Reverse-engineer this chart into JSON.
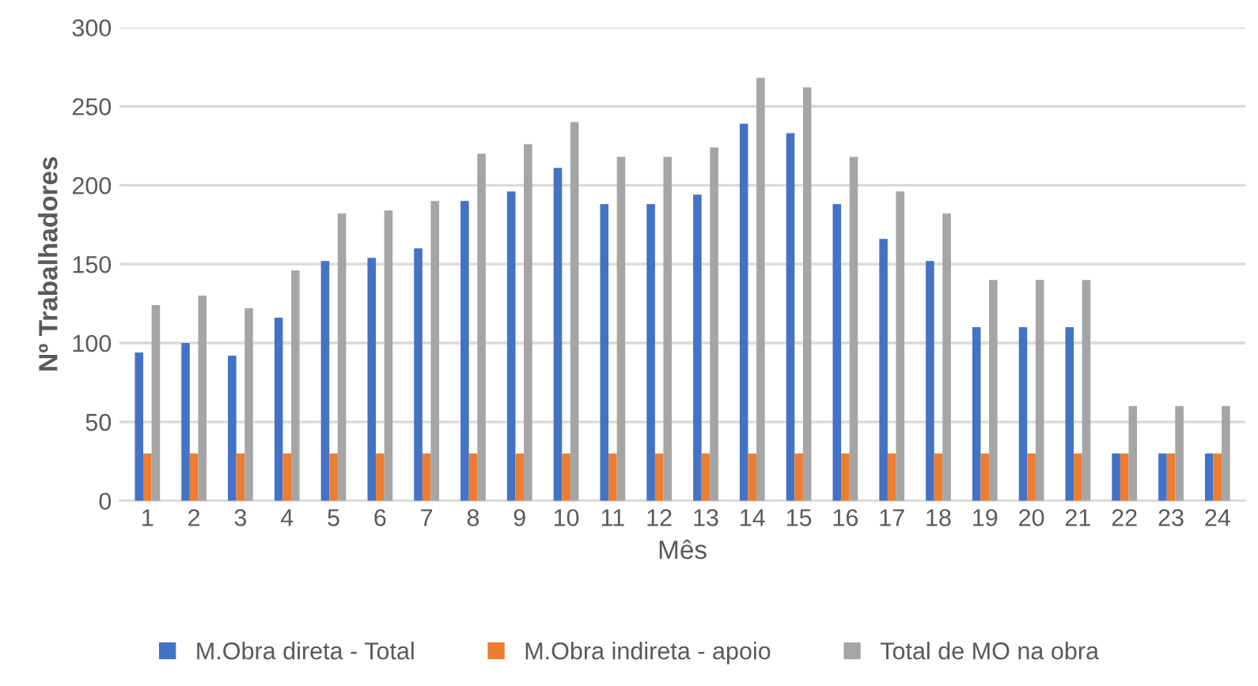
{
  "chart_data": {
    "type": "bar",
    "xlabel": "Mês",
    "ylabel": "Nº Trabalhadores",
    "categories": [
      "1",
      "2",
      "3",
      "4",
      "5",
      "6",
      "7",
      "8",
      "9",
      "10",
      "11",
      "12",
      "13",
      "14",
      "15",
      "16",
      "17",
      "18",
      "19",
      "20",
      "21",
      "22",
      "23",
      "24"
    ],
    "series": [
      {
        "name": "M.Obra direta - Total",
        "color": "#4472c4",
        "values": [
          94,
          100,
          92,
          116,
          152,
          154,
          160,
          190,
          196,
          211,
          188,
          188,
          194,
          239,
          233,
          188,
          166,
          152,
          110,
          110,
          110,
          30,
          30,
          30
        ]
      },
      {
        "name": "M.Obra indireta - apoio",
        "color": "#ed7d31",
        "values": [
          30,
          30,
          30,
          30,
          30,
          30,
          30,
          30,
          30,
          30,
          30,
          30,
          30,
          30,
          30,
          30,
          30,
          30,
          30,
          30,
          30,
          30,
          30,
          30
        ]
      },
      {
        "name": "Total de MO na obra",
        "color": "#a5a5a5",
        "values": [
          124,
          130,
          122,
          146,
          182,
          184,
          190,
          220,
          226,
          240,
          218,
          218,
          224,
          268,
          262,
          218,
          196,
          182,
          140,
          140,
          140,
          60,
          60,
          60
        ]
      }
    ],
    "ylim": [
      0,
      300
    ],
    "yticks": [
      0,
      50,
      100,
      150,
      200,
      250,
      300
    ],
    "grid": "y",
    "legend": "bottom"
  }
}
